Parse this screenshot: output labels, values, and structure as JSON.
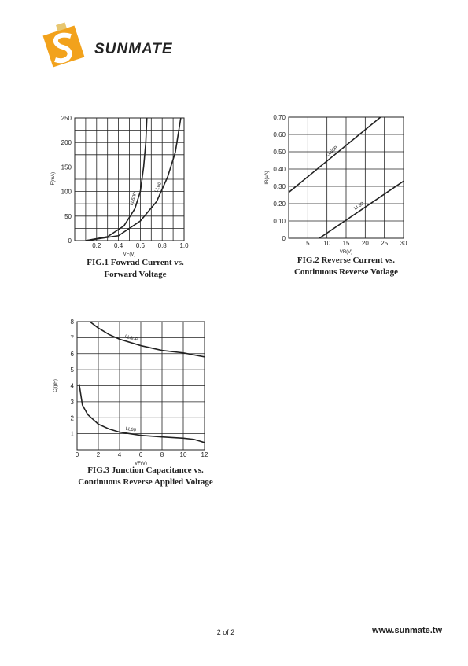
{
  "header": {
    "logo": "SUNMATE"
  },
  "chart_data": [
    {
      "type": "line",
      "title": [
        "FIG.1 Fowrad Current vs.",
        "Forward Voltage"
      ],
      "x_label": "VF(V)",
      "y_label": "IF(mA)",
      "xlim": [
        0,
        1
      ],
      "ylim": [
        0,
        250
      ],
      "xticks": [
        0.2,
        0.4,
        0.6,
        0.8,
        {
          "value": 1,
          "label": "1.0"
        }
      ],
      "yticks": [
        0,
        50,
        100,
        150,
        200,
        250
      ],
      "grid_x": [
        0.1,
        0.2,
        0.3,
        0.4,
        0.5,
        0.6,
        0.7,
        0.8,
        0.9
      ],
      "grid_y": [
        25,
        50,
        75,
        100,
        125,
        150,
        175,
        200,
        225
      ],
      "series": [
        {
          "name": "LL60P",
          "color": "#222222",
          "x": [
            0.1,
            0.3,
            0.45,
            0.55,
            0.6,
            0.63,
            0.65,
            0.66
          ],
          "values": [
            0,
            8,
            30,
            65,
            100,
            150,
            200,
            250
          ]
        },
        {
          "name": "LL60",
          "color": "#222222",
          "x": [
            0.1,
            0.4,
            0.6,
            0.75,
            0.85,
            0.92,
            0.97
          ],
          "values": [
            0,
            10,
            40,
            80,
            130,
            180,
            250
          ]
        }
      ]
    },
    {
      "type": "line",
      "title": [
        "FIG.2 Reverse Current vs.",
        "Continuous Reverse Votlage"
      ],
      "x_label": "VR(V)",
      "y_label": "IR(uA)",
      "xlim": [
        0,
        30
      ],
      "ylim": [
        0,
        0.7
      ],
      "xticks": [
        5,
        10,
        15,
        20,
        25,
        30
      ],
      "yticks": [
        0,
        {
          "value": 0.1,
          "label": "0.10"
        },
        {
          "value": 0.2,
          "label": "0.20"
        },
        {
          "value": 0.3,
          "label": "0.30"
        },
        {
          "value": 0.4,
          "label": "0.40"
        },
        {
          "value": 0.5,
          "label": "0.50"
        },
        {
          "value": 0.6,
          "label": "0.60"
        },
        {
          "value": 0.7,
          "label": "0.70"
        }
      ],
      "grid_x": [
        5,
        10,
        15,
        20,
        25
      ],
      "grid_y": [
        0.1,
        0.2,
        0.3,
        0.4,
        0.5,
        0.6
      ],
      "series": [
        {
          "name": "LL60P",
          "color": "#222222",
          "x": [
            0,
            24
          ],
          "values": [
            0.265,
            0.7
          ]
        },
        {
          "name": "LL60",
          "color": "#222222",
          "x": [
            8,
            30
          ],
          "values": [
            0,
            0.33
          ]
        }
      ]
    },
    {
      "type": "line",
      "title": [
        "FIG.3 Junction Capacitance vs.",
        "Continuous Reverse Applied Voltage"
      ],
      "x_label": "VF(V)",
      "y_label": "Cj(pF)",
      "xlim": [
        0,
        12
      ],
      "ylim": [
        0,
        8
      ],
      "xticks": [
        0,
        2,
        4,
        6,
        8,
        10,
        12
      ],
      "yticks": [
        1,
        2,
        3,
        4,
        5,
        6,
        7,
        8
      ],
      "grid_x": [
        2,
        4,
        6,
        8,
        10
      ],
      "grid_y": [
        1,
        2,
        3,
        4,
        5,
        6,
        7
      ],
      "series": [
        {
          "name": "LL60P",
          "color": "#222222",
          "x": [
            1.2,
            2,
            3,
            4,
            6,
            8,
            10,
            12
          ],
          "values": [
            8,
            7.6,
            7.2,
            6.9,
            6.5,
            6.2,
            6.05,
            5.8
          ]
        },
        {
          "name": "LL60",
          "color": "#222222",
          "x": [
            0.2,
            0.5,
            1,
            2,
            3,
            4,
            6,
            8,
            10,
            11,
            12
          ],
          "values": [
            4.1,
            2.8,
            2.2,
            1.6,
            1.3,
            1.1,
            0.9,
            0.8,
            0.72,
            0.65,
            0.45
          ]
        }
      ]
    }
  ],
  "footer": {
    "page": "2 of 2",
    "url": "www.sunmate.tw"
  }
}
